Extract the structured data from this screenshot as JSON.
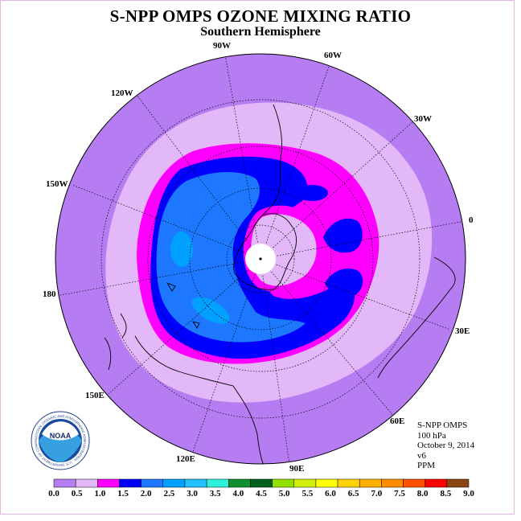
{
  "title": "S-NPP OMPS OZONE MIXING RATIO",
  "subtitle": "Southern Hemisphere",
  "logo_text": "NOAA",
  "logo_ring_text": "NATIONAL OCEANIC AND ATMOSPHERIC ADMINISTRATION · U.S. DEPARTMENT OF COMMERCE",
  "longitude_labels": [
    "90W",
    "60W",
    "30W",
    "0",
    "30E",
    "60E",
    "90E",
    "120E",
    "150E",
    "180",
    "150W",
    "120W"
  ],
  "info": {
    "instrument": "S-NPP OMPS",
    "level": "100 hPa",
    "date": "October 9, 2014",
    "version": "v6",
    "units": "PPM"
  },
  "chart_data": {
    "type": "heatmap",
    "projection": "south polar stereographic",
    "colorbar": {
      "ticks": [
        "0.0",
        "0.5",
        "1.0",
        "1.5",
        "2.0",
        "2.5",
        "3.0",
        "3.5",
        "4.0",
        "4.5",
        "5.0",
        "5.5",
        "6.0",
        "6.5",
        "7.0",
        "7.5",
        "8.0",
        "8.5",
        "9.0"
      ],
      "colors": [
        "#b67cf2",
        "#e2b8f8",
        "#ff00ff",
        "#0000ff",
        "#1e78ff",
        "#00a0ff",
        "#22c0ff",
        "#30f0d8",
        "#109030",
        "#006020",
        "#90e000",
        "#d0f000",
        "#ffff00",
        "#ffd200",
        "#ffb000",
        "#ff8c00",
        "#ff5000",
        "#ff0000",
        "#8b4513"
      ]
    }
  },
  "colors": {
    "background": "#b67cf2",
    "ring_light": "#e2b8f8",
    "ring_magenta": "#ff00ff",
    "band_blue": "#0000ff",
    "inner_blue": "#1e78ff",
    "core_cyan": "#00a0ff",
    "pole_hole": "#ffffff"
  }
}
